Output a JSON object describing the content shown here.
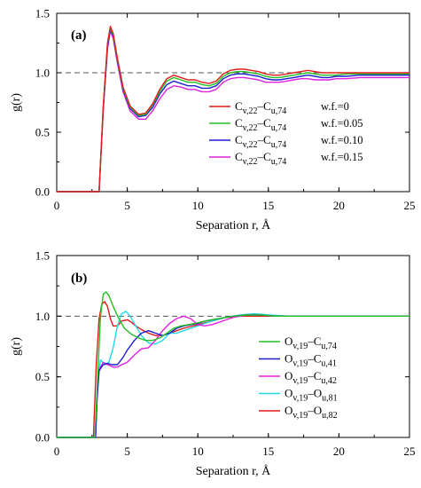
{
  "chart_data": [
    {
      "type": "line",
      "panel_label": "(a)",
      "xlabel": "Separation r, Å",
      "ylabel": "g(r)",
      "xlim": [
        0,
        25
      ],
      "ylim": [
        0,
        1.5
      ],
      "xticks": [
        "0",
        "5",
        "10",
        "15",
        "20",
        "25"
      ],
      "yticks": [
        "0.0",
        "0.5",
        "1.0",
        "1.5"
      ],
      "reference_line": 1.0,
      "legend_position": "center-right",
      "series": [
        {
          "name": "Cv,22–Cu,74",
          "label_main": "C",
          "sub1": "v,22",
          "label_mid": "–C",
          "sub2": "u,74",
          "extra": "w.f.=0",
          "color": "#e31a1c",
          "x": [
            0,
            3.0,
            3.3,
            3.6,
            3.8,
            4.0,
            4.3,
            4.7,
            5.2,
            5.8,
            6.3,
            6.8,
            7.3,
            7.8,
            8.3,
            8.8,
            9.3,
            9.8,
            10.3,
            10.8,
            11.3,
            11.8,
            12.3,
            12.8,
            13.3,
            13.8,
            14.3,
            14.8,
            15.3,
            15.8,
            16.3,
            16.8,
            17.3,
            17.8,
            18.3,
            18.8,
            19.3,
            19.8,
            20.5,
            21.5,
            22.5,
            23.5,
            24.5,
            25
          ],
          "y": [
            0,
            0,
            0.72,
            1.25,
            1.39,
            1.33,
            1.12,
            0.88,
            0.72,
            0.65,
            0.66,
            0.74,
            0.86,
            0.95,
            0.98,
            0.96,
            0.94,
            0.94,
            0.92,
            0.91,
            0.93,
            0.99,
            1.02,
            1.03,
            1.03,
            1.02,
            1.01,
            0.99,
            0.98,
            0.98,
            0.99,
            1.0,
            1.01,
            1.02,
            1.01,
            1.0,
            1.0,
            1.0,
            1.0,
            1.0,
            1.0,
            1.0,
            1.0,
            1.0
          ]
        },
        {
          "name": "Cv,22–Cu,74",
          "label_main": "C",
          "sub1": "v,22",
          "label_mid": "–C",
          "sub2": "u,74",
          "extra": "w.f.=0.05",
          "color": "#22c022",
          "x": [
            0,
            3.0,
            3.3,
            3.6,
            3.8,
            4.0,
            4.3,
            4.7,
            5.2,
            5.8,
            6.3,
            6.8,
            7.3,
            7.8,
            8.3,
            8.8,
            9.3,
            9.8,
            10.3,
            10.8,
            11.3,
            11.8,
            12.3,
            12.8,
            13.3,
            13.8,
            14.3,
            14.8,
            15.3,
            15.8,
            16.3,
            16.8,
            17.3,
            17.8,
            18.3,
            18.8,
            19.3,
            19.8,
            20.5,
            21.5,
            22.5,
            23.5,
            24.5,
            25
          ],
          "y": [
            0,
            0,
            0.71,
            1.24,
            1.38,
            1.32,
            1.11,
            0.87,
            0.71,
            0.64,
            0.65,
            0.73,
            0.84,
            0.93,
            0.96,
            0.94,
            0.92,
            0.92,
            0.9,
            0.89,
            0.91,
            0.97,
            1.0,
            1.01,
            1.01,
            1.0,
            0.99,
            0.97,
            0.96,
            0.96,
            0.97,
            0.98,
            0.99,
            1.0,
            0.99,
            0.98,
            0.98,
            0.98,
            0.99,
            0.99,
            0.99,
            0.99,
            0.99,
            0.99
          ]
        },
        {
          "name": "Cv,22–Cu,74",
          "label_main": "C",
          "sub1": "v,22",
          "label_mid": "–C",
          "sub2": "u,74",
          "extra": "w.f.=0.10",
          "color": "#1f1fd0",
          "x": [
            0,
            3.0,
            3.3,
            3.6,
            3.8,
            4.0,
            4.3,
            4.7,
            5.2,
            5.8,
            6.3,
            6.8,
            7.3,
            7.8,
            8.3,
            8.8,
            9.3,
            9.8,
            10.3,
            10.8,
            11.3,
            11.8,
            12.3,
            12.8,
            13.3,
            13.8,
            14.3,
            14.8,
            15.3,
            15.8,
            16.3,
            16.8,
            17.3,
            17.8,
            18.3,
            18.8,
            19.3,
            19.8,
            20.5,
            21.5,
            22.5,
            23.5,
            24.5,
            25
          ],
          "y": [
            0,
            0,
            0.7,
            1.22,
            1.37,
            1.31,
            1.1,
            0.86,
            0.7,
            0.63,
            0.64,
            0.71,
            0.82,
            0.9,
            0.93,
            0.91,
            0.89,
            0.89,
            0.87,
            0.87,
            0.89,
            0.95,
            0.98,
            0.99,
            0.99,
            0.98,
            0.97,
            0.95,
            0.94,
            0.94,
            0.95,
            0.96,
            0.97,
            0.98,
            0.97,
            0.96,
            0.96,
            0.97,
            0.97,
            0.98,
            0.98,
            0.98,
            0.98,
            0.98
          ]
        },
        {
          "name": "Cv,22–Cu,74",
          "label_main": "C",
          "sub1": "v,22",
          "label_mid": "–C",
          "sub2": "u,74",
          "extra": "w.f.=0.15",
          "color": "#e020e0",
          "x": [
            0,
            3.0,
            3.3,
            3.6,
            3.8,
            4.0,
            4.3,
            4.7,
            5.2,
            5.8,
            6.3,
            6.8,
            7.3,
            7.8,
            8.3,
            8.8,
            9.3,
            9.8,
            10.3,
            10.8,
            11.3,
            11.8,
            12.3,
            12.8,
            13.3,
            13.8,
            14.3,
            14.8,
            15.3,
            15.8,
            16.3,
            16.8,
            17.3,
            17.8,
            18.3,
            18.8,
            19.3,
            19.8,
            20.5,
            21.5,
            22.5,
            23.5,
            24.5,
            25
          ],
          "y": [
            0,
            0,
            0.69,
            1.2,
            1.35,
            1.29,
            1.08,
            0.84,
            0.68,
            0.61,
            0.61,
            0.68,
            0.78,
            0.86,
            0.89,
            0.88,
            0.86,
            0.86,
            0.84,
            0.84,
            0.86,
            0.92,
            0.95,
            0.96,
            0.96,
            0.95,
            0.94,
            0.92,
            0.92,
            0.92,
            0.93,
            0.94,
            0.95,
            0.95,
            0.94,
            0.94,
            0.94,
            0.95,
            0.95,
            0.96,
            0.96,
            0.96,
            0.96,
            0.96
          ]
        }
      ]
    },
    {
      "type": "line",
      "panel_label": "(b)",
      "xlabel": "Separation r, Å",
      "ylabel": "g(r)",
      "xlim": [
        0,
        25
      ],
      "ylim": [
        0,
        1.5
      ],
      "xticks": [
        "0",
        "5",
        "10",
        "15",
        "20",
        "25"
      ],
      "yticks": [
        "0.0",
        "0.5",
        "1.0",
        "1.5"
      ],
      "reference_line": 1.0,
      "legend_position": "lower-right",
      "series": [
        {
          "name": "Ov,19–Cu,74",
          "label_main": "O",
          "sub1": "v,19",
          "label_mid": "–C",
          "sub2": "u,74",
          "extra": "",
          "color": "#22c022",
          "x": [
            0,
            2.7,
            2.9,
            3.1,
            3.3,
            3.5,
            3.7,
            4.0,
            4.4,
            4.8,
            5.3,
            5.8,
            6.3,
            6.8,
            7.3,
            7.8,
            8.3,
            8.8,
            9.3,
            9.8,
            10.5,
            11.5,
            12.5,
            13.5,
            14.5,
            15.5,
            17,
            19,
            21,
            23,
            25
          ],
          "y": [
            0,
            0,
            0.5,
            1.0,
            1.18,
            1.2,
            1.17,
            1.08,
            0.98,
            0.9,
            0.85,
            0.82,
            0.8,
            0.8,
            0.82,
            0.86,
            0.9,
            0.92,
            0.93,
            0.94,
            0.96,
            0.98,
            1.0,
            1.01,
            1.01,
            1.0,
            1.0,
            1.0,
            1.0,
            1.0,
            1.0
          ]
        },
        {
          "name": "Ov,19–Cu,41",
          "label_main": "O",
          "sub1": "v,19",
          "label_mid": "–C",
          "sub2": "u,41",
          "extra": "",
          "color": "#1f1fd0",
          "x": [
            0,
            2.75,
            2.85,
            3.0,
            3.3,
            3.6,
            3.9,
            4.3,
            4.7,
            5.0,
            5.5,
            6.0,
            6.5,
            7.0,
            7.5,
            8.0,
            8.5,
            9.0,
            9.5,
            10.0,
            10.5,
            11.5,
            12.5,
            13.5,
            14.5,
            15.5,
            17,
            19,
            21,
            23,
            25
          ],
          "y": [
            0,
            0,
            0.3,
            0.55,
            0.6,
            0.61,
            0.6,
            0.6,
            0.66,
            0.72,
            0.8,
            0.86,
            0.88,
            0.86,
            0.84,
            0.86,
            0.9,
            0.92,
            0.93,
            0.94,
            0.96,
            0.98,
            1.0,
            1.01,
            1.01,
            1.0,
            1.0,
            1.0,
            1.0,
            1.0,
            1.0
          ]
        },
        {
          "name": "Ov,19–Cu,42",
          "label_main": "O",
          "sub1": "v,19",
          "label_mid": "–C",
          "sub2": "u,42",
          "extra": "",
          "color": "#e020e0",
          "x": [
            0,
            2.75,
            2.85,
            3.0,
            3.3,
            3.6,
            4.0,
            4.3,
            4.6,
            5.0,
            5.5,
            6.0,
            6.5,
            7.0,
            7.5,
            8.0,
            8.5,
            9.0,
            9.5,
            10.0,
            10.5,
            11.0,
            11.5,
            12.5,
            13.5,
            14.5,
            15.5,
            17,
            19,
            21,
            23,
            25
          ],
          "y": [
            0,
            0,
            0.32,
            0.56,
            0.62,
            0.6,
            0.58,
            0.58,
            0.6,
            0.62,
            0.68,
            0.73,
            0.74,
            0.8,
            0.88,
            0.94,
            0.98,
            1.0,
            0.98,
            0.93,
            0.92,
            0.93,
            0.95,
            0.99,
            1.01,
            1.01,
            1.0,
            1.0,
            1.0,
            1.0,
            1.0,
            1.0
          ]
        },
        {
          "name": "Ov,19–Ou,81",
          "label_main": "O",
          "sub1": "v,19",
          "label_mid": "–O",
          "sub2": "u,81",
          "extra": "",
          "color": "#22d8e8",
          "x": [
            0,
            2.75,
            2.9,
            3.1,
            3.4,
            3.7,
            4.0,
            4.3,
            4.6,
            4.9,
            5.2,
            5.6,
            6.0,
            6.5,
            7.0,
            7.5,
            8.0,
            8.5,
            9.0,
            9.5,
            10.0,
            10.5,
            11.0,
            12.0,
            13.0,
            14.0,
            15.0,
            16.5,
            18,
            20,
            22,
            25
          ],
          "y": [
            0,
            0,
            0.45,
            0.64,
            0.6,
            0.62,
            0.74,
            0.92,
            1.02,
            1.04,
            1.0,
            0.92,
            0.84,
            0.78,
            0.77,
            0.8,
            0.86,
            0.86,
            0.88,
            0.9,
            0.92,
            0.94,
            0.96,
            0.99,
            1.01,
            1.02,
            1.01,
            1.0,
            1.0,
            1.0,
            1.0,
            1.0
          ]
        },
        {
          "name": "Ov,19–Ou,82",
          "label_main": "O",
          "sub1": "v,19",
          "label_mid": "–O",
          "sub2": "u,82",
          "extra": "",
          "color": "#e31a1c",
          "x": [
            0,
            2.6,
            2.8,
            3.0,
            3.2,
            3.4,
            3.6,
            3.8,
            4.0,
            4.3,
            4.6,
            5.0,
            5.3,
            5.6,
            6.0,
            6.5,
            7.0,
            7.5,
            8.0,
            8.5,
            9.0,
            10.0,
            11.0,
            12.0,
            13.0,
            14.0,
            15.0,
            16.5,
            18,
            20,
            22,
            25
          ],
          "y": [
            0,
            0,
            0.6,
            0.98,
            1.1,
            1.12,
            1.08,
            0.98,
            0.92,
            0.92,
            0.96,
            0.97,
            0.95,
            0.92,
            0.89,
            0.86,
            0.84,
            0.84,
            0.86,
            0.88,
            0.9,
            0.93,
            0.96,
            0.99,
            1.0,
            1.0,
            1.0,
            1.0,
            1.0,
            1.0,
            1.0,
            1.0
          ]
        }
      ]
    }
  ]
}
